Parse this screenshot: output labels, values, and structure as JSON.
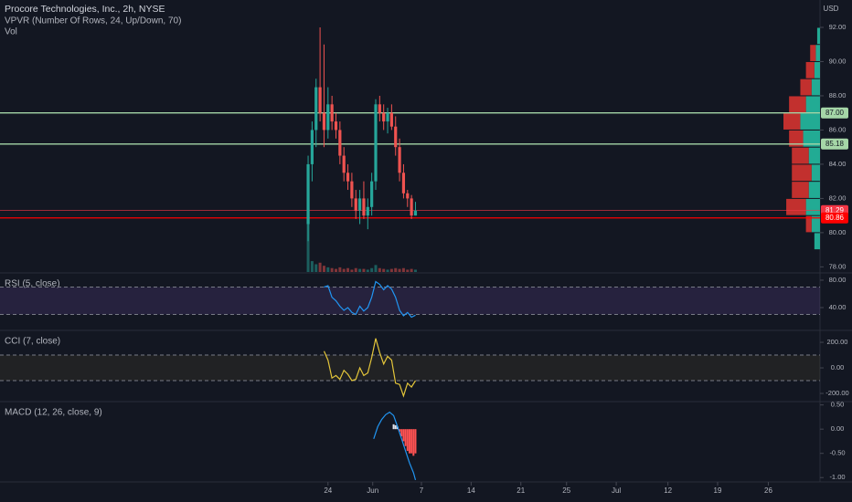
{
  "currency": "USD",
  "chart_data": [
    {
      "type": "candlestick",
      "title": "Procore Technologies, Inc., 2h, NYSE",
      "subtitle": "VPVR (Number Of Rows, 24, Up/Down, 70)",
      "volume_label": "Vol",
      "up_color": "#26a69a",
      "down_color": "#ef5350",
      "xlim": [
        -33,
        49.5
      ],
      "xticks": [
        {
          "value": 0,
          "label": "24"
        },
        {
          "value": 4.5,
          "label": "Jun"
        },
        {
          "value": 9.4,
          "label": "7"
        },
        {
          "value": 14.4,
          "label": "14"
        },
        {
          "value": 19.4,
          "label": "21"
        },
        {
          "value": 24,
          "label": "25"
        },
        {
          "value": 29,
          "label": "Jul"
        },
        {
          "value": 34.2,
          "label": "12"
        },
        {
          "value": 39.2,
          "label": "19"
        },
        {
          "value": 44.3,
          "label": "26"
        }
      ],
      "ylim": [
        77.7,
        93.6
      ],
      "yticks": [
        {
          "value": 78,
          "label": "78.00"
        },
        {
          "value": 80,
          "label": "80.00"
        },
        {
          "value": 82,
          "label": "82.00"
        },
        {
          "value": 84,
          "label": "84.00"
        },
        {
          "value": 86,
          "label": "86.00"
        },
        {
          "value": 88,
          "label": "88.00"
        },
        {
          "value": 90,
          "label": "90.00"
        },
        {
          "value": 92,
          "label": "92.00"
        }
      ],
      "x": [
        -2.0,
        -1.6,
        -1.2,
        -0.8,
        -0.4,
        0.0,
        0.4,
        0.8,
        1.2,
        1.6,
        2.0,
        2.4,
        2.8,
        3.2,
        3.6,
        4.0,
        4.4,
        4.8,
        5.2,
        5.6,
        6.0,
        6.4,
        6.8,
        7.2,
        7.6,
        8.0,
        8.4,
        8.8
      ],
      "open": [
        80.5,
        84,
        86,
        88.5,
        87,
        86,
        87.5,
        86.5,
        86,
        84.5,
        83.5,
        83,
        82,
        81.3,
        82,
        81,
        81.5,
        83,
        87.5,
        87,
        86.5,
        87,
        86.2,
        85,
        83.5,
        82.3,
        82,
        81
      ],
      "high": [
        84.5,
        86.5,
        89,
        92,
        91,
        88.5,
        88,
        87,
        86.5,
        85,
        84,
        83.5,
        82.5,
        82.5,
        83,
        82,
        83.5,
        87.8,
        88,
        87.5,
        87.3,
        87.5,
        86.8,
        85.5,
        84,
        82.5,
        82.2,
        81.8
      ],
      "low": [
        79.5,
        83,
        85,
        86.5,
        85,
        85.5,
        86,
        85.5,
        84,
        83,
        82.5,
        81.5,
        80.8,
        80.5,
        80.8,
        80.2,
        81,
        82.5,
        86.5,
        86,
        85.8,
        86,
        84.5,
        83,
        82,
        81.5,
        80.8,
        81
      ],
      "close": [
        84,
        86,
        88.5,
        87,
        86,
        87.5,
        86.5,
        86,
        84.5,
        83.5,
        83,
        82,
        81.3,
        82,
        81,
        81.5,
        83,
        87.5,
        87,
        86.5,
        87,
        86.2,
        85,
        83.5,
        82.3,
        82,
        81,
        81.29
      ],
      "volume": [
        80,
        14,
        10,
        12,
        8,
        6,
        5,
        4,
        6,
        4,
        5,
        3,
        5,
        4,
        4,
        3,
        5,
        9,
        5,
        4,
        3,
        4,
        5,
        4,
        5,
        3,
        4,
        3
      ],
      "price_lines": [
        {
          "value": 87,
          "label": "87.00",
          "color": "#a5d6a7"
        },
        {
          "value": 85.18,
          "label": "85.18",
          "color": "#a5d6a7"
        },
        {
          "value": 81.29,
          "label": "81.29",
          "color": "#f23645"
        },
        {
          "value": 80.86,
          "label": "80.86",
          "color": "#ff0000"
        }
      ],
      "volume_profile": {
        "price": [
          79.5,
          80.5,
          81.5,
          82.5,
          83.5,
          84.5,
          85.5,
          86.5,
          87.5,
          88.5,
          89.5,
          90.5,
          91.5
        ],
        "up": [
          4,
          6,
          10,
          8,
          6,
          8,
          12,
          14,
          10,
          6,
          4,
          3,
          2
        ],
        "down": [
          0,
          4,
          14,
          12,
          14,
          12,
          10,
          12,
          12,
          8,
          6,
          4,
          0
        ],
        "up_color": "#22ab94",
        "down_color": "#c2302e"
      }
    },
    {
      "type": "line",
      "title": "RSI (5, close)",
      "color": "#2196f3",
      "band_color": "#7e57c2",
      "bands": [
        30,
        70
      ],
      "ylim": [
        6.7,
        89.3
      ],
      "yticks": [
        {
          "value": 80,
          "label": "80.00"
        },
        {
          "value": 40,
          "label": "40.00"
        }
      ],
      "x": [
        -0.4,
        0,
        0.4,
        0.8,
        1.2,
        1.6,
        2.0,
        2.4,
        2.8,
        3.2,
        3.6,
        4.0,
        4.4,
        4.8,
        5.2,
        5.6,
        6.0,
        6.4,
        6.8,
        7.2,
        7.6,
        8.0,
        8.4,
        8.8
      ],
      "values": [
        70,
        72,
        55,
        50,
        42,
        36,
        40,
        33,
        30,
        42,
        35,
        40,
        55,
        78,
        74,
        66,
        72,
        67,
        55,
        36,
        28,
        33,
        26,
        29
      ]
    },
    {
      "type": "line",
      "title": "CCI (7, close)",
      "color": "#e3c53a",
      "band_color": "#665a30",
      "bands": [
        -100,
        100
      ],
      "ylim": [
        -264,
        286
      ],
      "yticks": [
        {
          "value": 200,
          "label": "200.00"
        },
        {
          "value": 0,
          "label": "0.00"
        },
        {
          "value": -200,
          "label": "-200.00"
        }
      ],
      "x": [
        -0.4,
        0,
        0.4,
        0.8,
        1.2,
        1.6,
        2.0,
        2.4,
        2.8,
        3.2,
        3.6,
        4.0,
        4.4,
        4.8,
        5.2,
        5.6,
        6.0,
        6.4,
        6.8,
        7.2,
        7.6,
        8.0,
        8.4,
        8.8
      ],
      "values": [
        130,
        60,
        -80,
        -60,
        -90,
        -20,
        -50,
        -100,
        -90,
        0,
        -60,
        -40,
        80,
        230,
        120,
        30,
        90,
        60,
        -120,
        -130,
        -220,
        -120,
        -150,
        -100
      ]
    },
    {
      "type": "macd",
      "title": "MACD (12, 26, close, 9)",
      "color": "#2196f3",
      "pos_color": "#e0e3eb",
      "neg_color": "#ff5252",
      "ylim": [
        -1.09,
        0.55
      ],
      "yticks": [
        {
          "value": 0.5,
          "label": "0.50"
        },
        {
          "value": 0,
          "label": "0.00"
        },
        {
          "value": -0.5,
          "label": "-0.50"
        },
        {
          "value": -1,
          "label": "-1.00"
        }
      ],
      "x": [
        4.6,
        5.0,
        5.4,
        5.8,
        6.2,
        6.6,
        7.0,
        7.4,
        7.8,
        8.2,
        8.6,
        8.8
      ],
      "values": [
        -0.2,
        0.05,
        0.2,
        0.3,
        0.35,
        0.28,
        0.05,
        -0.2,
        -0.45,
        -0.7,
        -0.9,
        -1.05
      ],
      "hist_x": [
        6.6,
        6.8,
        7.0,
        7.2,
        7.4,
        7.6,
        7.8,
        8.0,
        8.2,
        8.4,
        8.6,
        8.8
      ],
      "histogram": [
        0.1,
        0.08,
        0.05,
        -0.05,
        -0.15,
        -0.25,
        -0.35,
        -0.45,
        -0.5,
        -0.5,
        -0.55,
        -0.5
      ]
    }
  ]
}
